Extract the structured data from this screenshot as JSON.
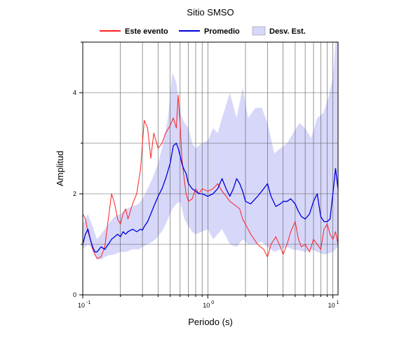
{
  "chart_data": {
    "type": "line",
    "title": "Sitio SMSO",
    "xlabel": "Periodo (s)",
    "ylabel": "Amplitud",
    "x_scale": "log",
    "xlim": [
      0.1,
      11
    ],
    "ylim": [
      0,
      5
    ],
    "grid": true,
    "legend_position": "top-center",
    "x_ticks": [
      {
        "value": 0.1,
        "base": "10",
        "exp": "-1"
      },
      {
        "value": 1,
        "base": "10",
        "exp": "0"
      },
      {
        "value": 10,
        "base": "10",
        "exp": "1"
      }
    ],
    "y_ticks": [
      0,
      2,
      4
    ],
    "legend": [
      {
        "label": "Este evento",
        "kind": "line",
        "color": "#ff2020"
      },
      {
        "label": "Promedio",
        "kind": "line",
        "color": "#0000dd"
      },
      {
        "label": "Desv. Est.",
        "kind": "band",
        "color": "#d7d7fa"
      }
    ],
    "series": [
      {
        "name": "Este evento",
        "color": "#ff2020",
        "x": [
          0.1,
          0.105,
          0.11,
          0.115,
          0.12,
          0.125,
          0.13,
          0.14,
          0.15,
          0.16,
          0.17,
          0.18,
          0.19,
          0.2,
          0.21,
          0.22,
          0.23,
          0.25,
          0.27,
          0.29,
          0.3,
          0.31,
          0.33,
          0.35,
          0.37,
          0.4,
          0.43,
          0.46,
          0.5,
          0.53,
          0.56,
          0.58,
          0.6,
          0.62,
          0.64,
          0.67,
          0.7,
          0.75,
          0.8,
          0.85,
          0.9,
          1.0,
          1.1,
          1.2,
          1.3,
          1.4,
          1.5,
          1.6,
          1.7,
          1.8,
          1.9,
          2.0,
          2.2,
          2.5,
          2.8,
          3.0,
          3.2,
          3.5,
          3.8,
          4.0,
          4.3,
          4.6,
          5.0,
          5.3,
          5.6,
          6.0,
          6.5,
          7.0,
          7.5,
          8.0,
          8.5,
          9.0,
          9.5,
          10.0,
          10.5,
          11.0
        ],
        "y": [
          1.6,
          1.5,
          1.25,
          1.1,
          0.9,
          0.8,
          0.72,
          0.75,
          0.95,
          1.5,
          2.0,
          1.8,
          1.5,
          1.4,
          1.6,
          1.7,
          1.5,
          1.8,
          2.0,
          2.5,
          3.0,
          3.45,
          3.3,
          2.7,
          3.2,
          2.9,
          3.0,
          3.2,
          3.35,
          3.5,
          3.3,
          3.95,
          3.4,
          2.7,
          2.4,
          2.0,
          1.85,
          1.9,
          2.1,
          2.0,
          2.1,
          2.05,
          2.1,
          2.2,
          2.05,
          1.95,
          1.85,
          1.8,
          1.75,
          1.7,
          1.5,
          1.4,
          1.2,
          1.0,
          0.9,
          0.75,
          1.0,
          1.15,
          0.95,
          0.8,
          1.0,
          1.25,
          1.45,
          1.1,
          0.95,
          1.0,
          0.85,
          1.1,
          1.0,
          0.9,
          1.3,
          1.4,
          1.2,
          1.1,
          1.25,
          1.0
        ]
      },
      {
        "name": "Promedio",
        "color": "#0000dd",
        "x": [
          0.1,
          0.105,
          0.11,
          0.115,
          0.12,
          0.125,
          0.13,
          0.14,
          0.15,
          0.16,
          0.17,
          0.18,
          0.19,
          0.2,
          0.21,
          0.22,
          0.23,
          0.25,
          0.27,
          0.29,
          0.3,
          0.31,
          0.33,
          0.35,
          0.37,
          0.4,
          0.43,
          0.46,
          0.5,
          0.53,
          0.56,
          0.58,
          0.6,
          0.62,
          0.64,
          0.67,
          0.7,
          0.75,
          0.8,
          0.85,
          0.9,
          1.0,
          1.1,
          1.2,
          1.3,
          1.4,
          1.5,
          1.6,
          1.7,
          1.8,
          1.9,
          2.0,
          2.2,
          2.5,
          2.8,
          3.0,
          3.2,
          3.5,
          3.8,
          4.0,
          4.3,
          4.6,
          5.0,
          5.3,
          5.6,
          6.0,
          6.5,
          7.0,
          7.5,
          8.0,
          8.5,
          9.0,
          9.5,
          10.0,
          10.5,
          11.0
        ],
        "y": [
          1.0,
          1.2,
          1.3,
          1.1,
          0.95,
          0.85,
          0.85,
          0.95,
          0.9,
          1.0,
          1.1,
          1.15,
          1.2,
          1.15,
          1.25,
          1.2,
          1.25,
          1.3,
          1.25,
          1.3,
          1.28,
          1.35,
          1.45,
          1.6,
          1.75,
          1.95,
          2.1,
          2.3,
          2.6,
          2.95,
          3.0,
          2.9,
          2.75,
          2.6,
          2.5,
          2.4,
          2.2,
          2.1,
          2.05,
          2.0,
          2.0,
          1.95,
          2.0,
          2.1,
          2.3,
          2.1,
          1.95,
          2.1,
          2.3,
          2.2,
          2.05,
          1.85,
          1.8,
          1.95,
          2.1,
          2.2,
          1.95,
          1.75,
          1.8,
          1.85,
          1.85,
          1.9,
          1.8,
          1.65,
          1.55,
          1.5,
          1.6,
          1.85,
          2.0,
          1.55,
          1.45,
          1.45,
          1.5,
          2.0,
          2.5,
          2.1
        ]
      }
    ],
    "band": {
      "name": "Desv. Est.",
      "color": "#d7d7fa",
      "x": [
        0.1,
        0.11,
        0.12,
        0.13,
        0.14,
        0.15,
        0.16,
        0.18,
        0.2,
        0.22,
        0.25,
        0.28,
        0.3,
        0.33,
        0.36,
        0.4,
        0.44,
        0.48,
        0.52,
        0.56,
        0.6,
        0.65,
        0.7,
        0.75,
        0.8,
        0.9,
        1.0,
        1.1,
        1.2,
        1.3,
        1.5,
        1.7,
        1.9,
        2.1,
        2.4,
        2.7,
        3.0,
        3.4,
        3.8,
        4.3,
        4.8,
        5.4,
        6.0,
        6.7,
        7.5,
        8.4,
        9.2,
        10.0,
        10.5,
        11.0
      ],
      "upper": [
        1.4,
        1.6,
        1.35,
        1.1,
        1.2,
        1.3,
        1.4,
        1.55,
        1.6,
        1.7,
        1.75,
        1.8,
        1.9,
        2.1,
        2.3,
        2.6,
        3.0,
        3.5,
        4.4,
        4.2,
        3.6,
        3.4,
        3.3,
        3.0,
        2.9,
        3.0,
        3.05,
        3.3,
        3.2,
        3.5,
        4.0,
        3.5,
        4.1,
        3.5,
        3.7,
        3.7,
        3.4,
        2.8,
        2.9,
        3.0,
        3.2,
        3.4,
        3.3,
        3.1,
        3.5,
        3.6,
        3.9,
        4.3,
        5.0,
        5.0
      ],
      "lower": [
        0.9,
        1.0,
        0.9,
        0.7,
        0.7,
        0.75,
        0.78,
        0.8,
        0.85,
        0.85,
        0.9,
        0.9,
        0.95,
        1.0,
        1.05,
        1.15,
        1.3,
        1.5,
        1.7,
        1.8,
        1.85,
        1.5,
        1.35,
        1.25,
        1.2,
        1.25,
        1.3,
        1.1,
        1.2,
        1.3,
        1.0,
        0.95,
        1.1,
        1.0,
        1.0,
        1.05,
        0.95,
        0.85,
        0.9,
        0.95,
        0.9,
        0.88,
        0.85,
        0.9,
        0.85,
        0.8,
        0.82,
        0.85,
        0.9,
        0.95
      ]
    }
  }
}
